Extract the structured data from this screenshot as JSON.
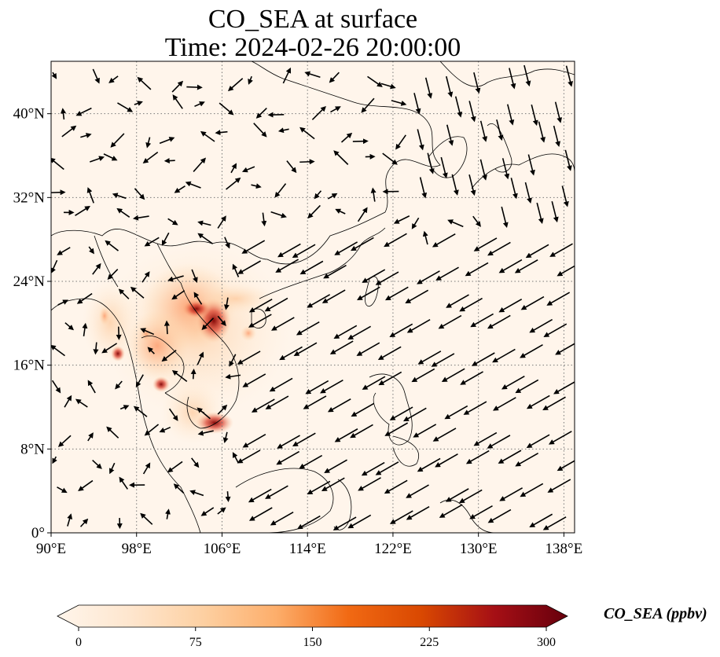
{
  "title": {
    "line1": "CO_SEA at surface",
    "line2": "Time: 2024-02-26 20:00:00"
  },
  "map": {
    "projection": "PlateCarree",
    "lon_range": [
      90,
      139
    ],
    "lat_range": [
      0,
      45
    ],
    "gridlines": "dotted",
    "x_ticks": [
      {
        "value": 90,
        "label": "90°E"
      },
      {
        "value": 98,
        "label": "98°E"
      },
      {
        "value": 106,
        "label": "106°E"
      },
      {
        "value": 114,
        "label": "114°E"
      },
      {
        "value": 122,
        "label": "122°E"
      },
      {
        "value": 130,
        "label": "130°E"
      },
      {
        "value": 138,
        "label": "138°E"
      }
    ],
    "y_ticks": [
      {
        "value": 0,
        "label": "0°"
      },
      {
        "value": 8,
        "label": "8°N"
      },
      {
        "value": 16,
        "label": "16°N"
      },
      {
        "value": 24,
        "label": "24°N"
      },
      {
        "value": 32,
        "label": "32°N"
      },
      {
        "value": 40,
        "label": "40°N"
      }
    ],
    "background_color": "#fff5eb",
    "coastline_color": "#000000",
    "arrow_color": "#000000"
  },
  "colorbar": {
    "label": "CO_SEA (ppbv)",
    "colormap": "OrRd",
    "range": [
      0,
      300
    ],
    "extend": "both",
    "ticks": [
      {
        "value": 0,
        "label": "0"
      },
      {
        "value": 75,
        "label": "75"
      },
      {
        "value": 150,
        "label": "150"
      },
      {
        "value": 225,
        "label": "225"
      },
      {
        "value": 300,
        "label": "300"
      }
    ],
    "colors": [
      "#fff5eb",
      "#fee6ce",
      "#fdd0a2",
      "#fdae6b",
      "#f16913",
      "#d94801",
      "#a50f15",
      "#67000d"
    ]
  }
}
